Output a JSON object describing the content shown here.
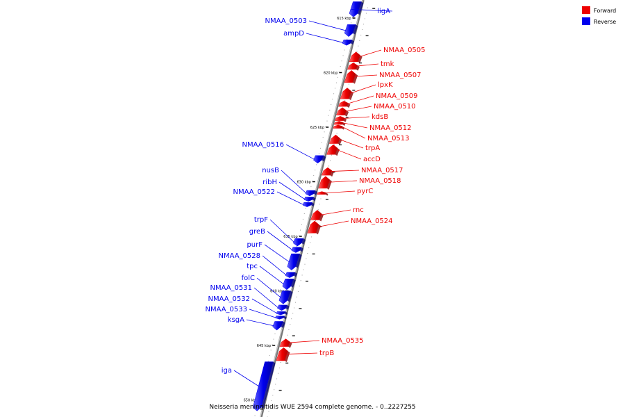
{
  "caption": "Neisseria meningitidis WUE 2594 complete genome. - 0..2227255",
  "legend": {
    "placement": "top-right",
    "entries": [
      {
        "label": "Forward",
        "color": "#ee0000"
      },
      {
        "label": "Reverse",
        "color": "#0000ee"
      }
    ]
  },
  "colors": {
    "forward": "#ee0000",
    "reverse": "#0000ee",
    "backbone": "#888888"
  },
  "ruler": {
    "ticks": [
      {
        "kbp": 615,
        "label": "615 kbp"
      },
      {
        "kbp": 620,
        "label": "620 kbp"
      },
      {
        "kbp": 625,
        "label": "625 kbp"
      },
      {
        "kbp": 630,
        "label": "630 kbp"
      },
      {
        "kbp": 635,
        "label": "635 kbp"
      },
      {
        "kbp": 640,
        "label": "640 kbp"
      },
      {
        "kbp": 645,
        "label": "645 kbp"
      },
      {
        "kbp": 650,
        "label": "650 kbp"
      }
    ]
  },
  "genes": [
    {
      "label": "ligA",
      "strand": "reverse",
      "start": 613.5,
      "end": 614.9
    },
    {
      "label": "NMAA_0503",
      "strand": "reverse",
      "start": 615.6,
      "end": 616.7
    },
    {
      "label": "ampD",
      "strand": "reverse",
      "start": 617.0,
      "end": 617.5
    },
    {
      "label": "NMAA_0505",
      "strand": "forward",
      "start": 618.1,
      "end": 619.0
    },
    {
      "label": "tmk",
      "strand": "forward",
      "start": 619.1,
      "end": 619.7
    },
    {
      "label": "NMAA_0507",
      "strand": "forward",
      "start": 619.8,
      "end": 620.9
    },
    {
      "label": "lpxK",
      "strand": "forward",
      "start": 621.4,
      "end": 622.4
    },
    {
      "label": "NMAA_0509",
      "strand": "forward",
      "start": 622.6,
      "end": 623.1
    },
    {
      "label": "NMAA_0510",
      "strand": "forward",
      "start": 623.2,
      "end": 623.9
    },
    {
      "label": "kdsB",
      "strand": "forward",
      "start": 624.0,
      "end": 624.4
    },
    {
      "label": "NMAA_0512",
      "strand": "forward",
      "start": 624.45,
      "end": 624.75
    },
    {
      "label": "NMAA_0513",
      "strand": "forward",
      "start": 624.8,
      "end": 625.1
    },
    {
      "label": "trpA",
      "strand": "forward",
      "start": 625.7,
      "end": 626.5
    },
    {
      "label": "accD",
      "strand": "forward",
      "start": 626.6,
      "end": 627.5
    },
    {
      "label": "NMAA_0516",
      "strand": "reverse",
      "start": 627.6,
      "end": 628.3
    },
    {
      "label": "NMAA_0517",
      "strand": "forward",
      "start": 628.7,
      "end": 629.4
    },
    {
      "label": "NMAA_0518",
      "strand": "forward",
      "start": 629.5,
      "end": 630.6
    },
    {
      "label": "nusB",
      "strand": "reverse",
      "start": 630.8,
      "end": 631.3
    },
    {
      "label": "pyrC",
      "strand": "forward",
      "start": 630.9,
      "end": 631.1
    },
    {
      "label": "ribH",
      "strand": "reverse",
      "start": 631.4,
      "end": 631.8
    },
    {
      "label": "NMAA_0522",
      "strand": "reverse",
      "start": 631.9,
      "end": 632.3
    },
    {
      "label": "rnc",
      "strand": "forward",
      "start": 632.6,
      "end": 633.5
    },
    {
      "label": "NMAA_0524",
      "strand": "forward",
      "start": 633.6,
      "end": 634.7
    },
    {
      "label": "trpF",
      "strand": "reverse",
      "start": 635.2,
      "end": 635.9
    },
    {
      "label": "greB",
      "strand": "reverse",
      "start": 636.0,
      "end": 636.5
    },
    {
      "label": "purF",
      "strand": "reverse",
      "start": 636.6,
      "end": 638.1
    },
    {
      "label": "NMAA_0528",
      "strand": "reverse",
      "start": 638.3,
      "end": 638.8
    },
    {
      "label": "tpc",
      "strand": "reverse",
      "start": 638.9,
      "end": 639.9
    },
    {
      "label": "folC",
      "strand": "reverse",
      "start": 640.0,
      "end": 641.2
    },
    {
      "label": "NMAA_0531",
      "strand": "reverse",
      "start": 641.3,
      "end": 641.8
    },
    {
      "label": "NMAA_0532",
      "strand": "reverse",
      "start": 641.9,
      "end": 642.2
    },
    {
      "label": "NMAA_0533",
      "strand": "reverse",
      "start": 642.3,
      "end": 642.6
    },
    {
      "label": "ksgA",
      "strand": "reverse",
      "start": 642.8,
      "end": 643.6
    },
    {
      "label": "NMAA_0535",
      "strand": "forward",
      "start": 644.4,
      "end": 645.1
    },
    {
      "label": "trpB",
      "strand": "forward",
      "start": 645.2,
      "end": 646.4
    },
    {
      "label": "iga",
      "strand": "reverse",
      "start": 646.5,
      "end": 651.0
    }
  ]
}
